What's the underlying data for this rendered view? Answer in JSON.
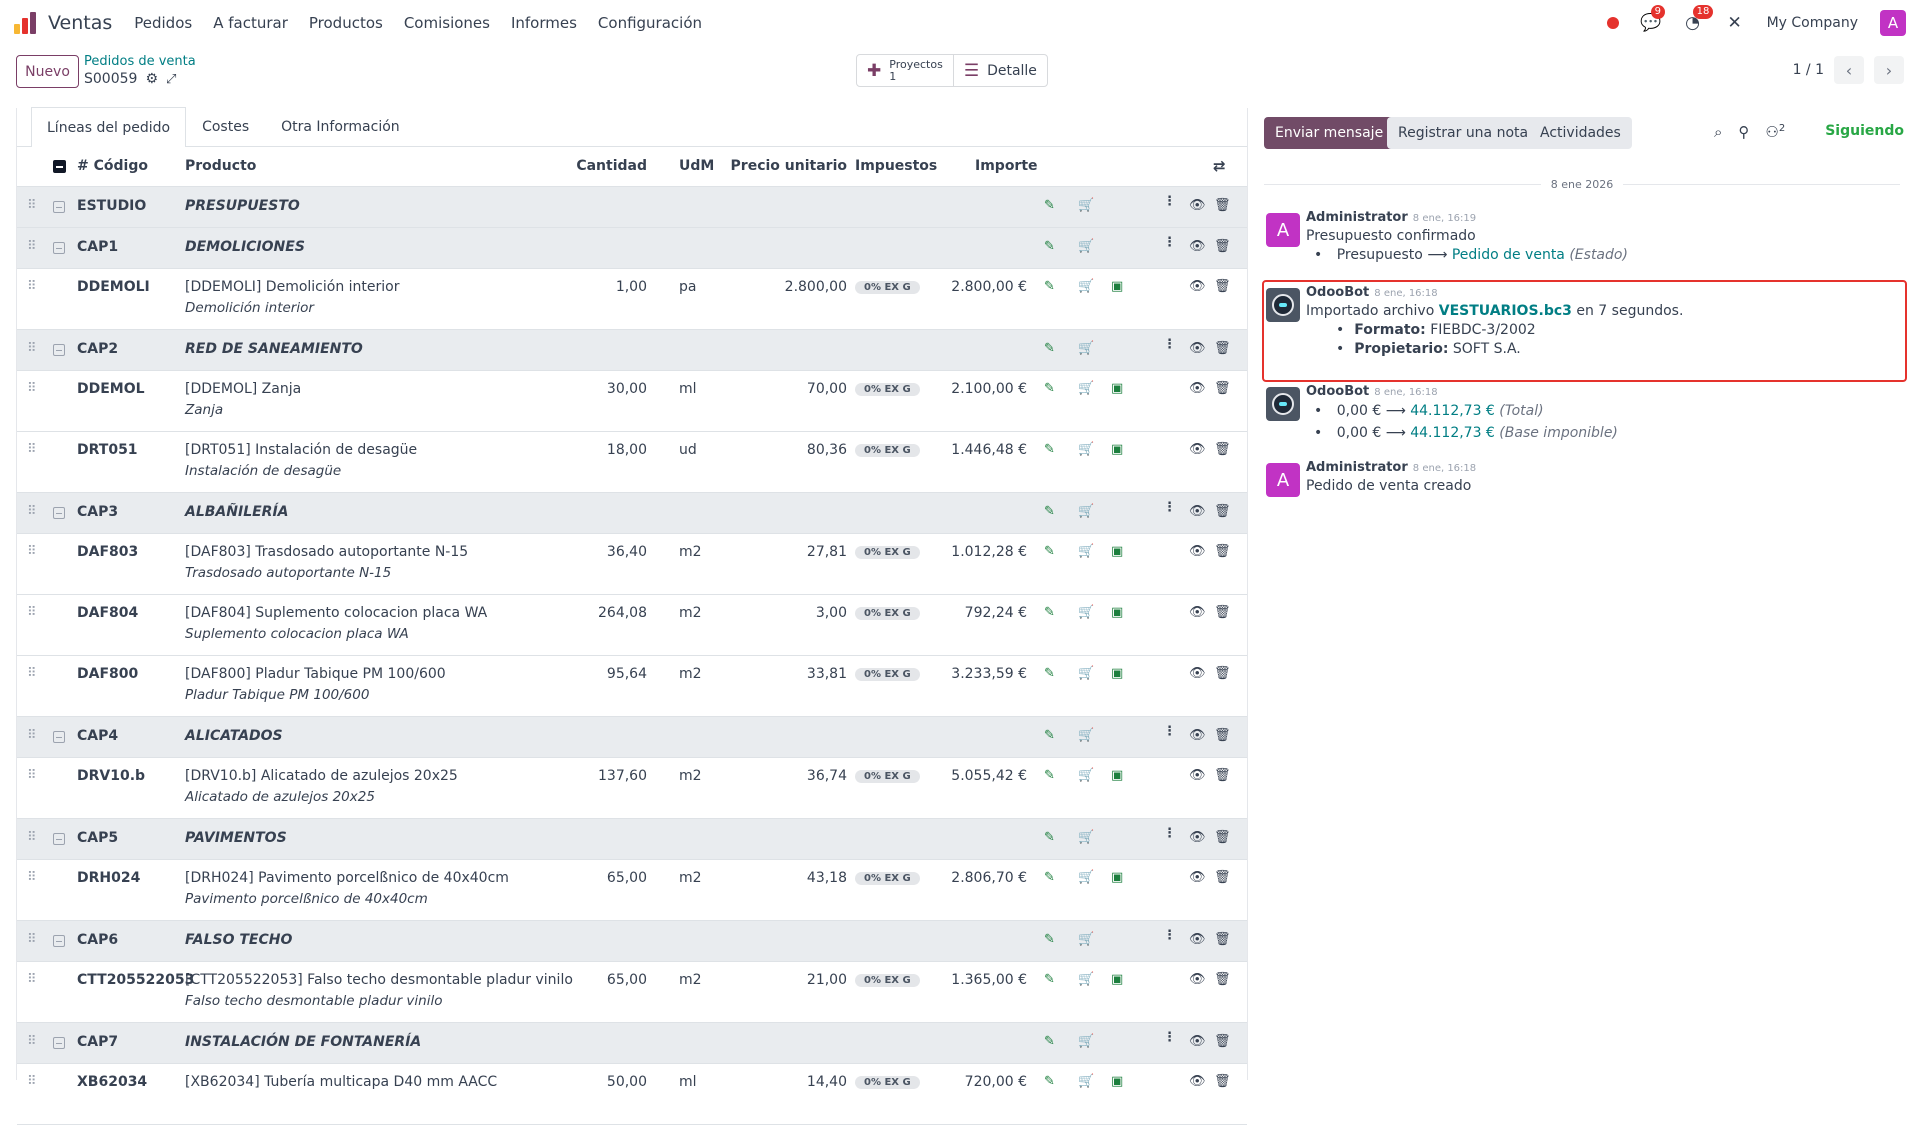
{
  "nav": {
    "app_name": "Ventas",
    "menu": [
      "Pedidos",
      "A facturar",
      "Productos",
      "Comisiones",
      "Informes",
      "Configuración"
    ],
    "messages_count": "9",
    "activities_count": "18",
    "company": "My Company",
    "user_initial": "A"
  },
  "control": {
    "new_label": "Nuevo",
    "breadcrumb": "Pedidos de venta",
    "record": "S00059",
    "smart_projects_label": "Proyectos",
    "smart_projects_count": "1",
    "smart_detail_label": "Detalle",
    "pager": "1 / 1"
  },
  "tabs": [
    "Líneas del pedido",
    "Costes",
    "Otra Información"
  ],
  "columns": {
    "code": "# Código",
    "product": "Producto",
    "qty": "Cantidad",
    "uom": "UdM",
    "price": "Precio unitario",
    "taxes": "Impuestos",
    "amount": "Importe"
  },
  "rows": [
    {
      "type": "section",
      "code": "ESTUDIO",
      "title": "PRESUPUESTO"
    },
    {
      "type": "section",
      "code": "CAP1",
      "title": "DEMOLICIONES"
    },
    {
      "type": "line",
      "code": "DDEMOLI",
      "product": "[DDEMOLI] Demolición interior",
      "desc": "Demolición interior",
      "qty": "1,00",
      "uom": "pa",
      "price": "2.800,00",
      "tax": "0% EX G",
      "amount": "2.800,00 €"
    },
    {
      "type": "section",
      "code": "CAP2",
      "title": "RED DE SANEAMIENTO"
    },
    {
      "type": "line",
      "code": "DDEMOL",
      "product": "[DDEMOL] Zanja",
      "desc": "Zanja",
      "qty": "30,00",
      "uom": "ml",
      "price": "70,00",
      "tax": "0% EX G",
      "amount": "2.100,00 €"
    },
    {
      "type": "line",
      "code": "DRT051",
      "product": "[DRT051] Instalación de desagüe",
      "desc": "Instalación de desagüe",
      "qty": "18,00",
      "uom": "ud",
      "price": "80,36",
      "tax": "0% EX G",
      "amount": "1.446,48 €"
    },
    {
      "type": "section",
      "code": "CAP3",
      "title": "ALBAÑILERÍA"
    },
    {
      "type": "line",
      "code": "DAF803",
      "product": "[DAF803] Trasdosado autoportante N-15",
      "desc": "Trasdosado autoportante N-15",
      "qty": "36,40",
      "uom": "m2",
      "price": "27,81",
      "tax": "0% EX G",
      "amount": "1.012,28 €"
    },
    {
      "type": "line",
      "code": "DAF804",
      "product": "[DAF804] Suplemento colocacion placa WA",
      "desc": "Suplemento colocacion placa WA",
      "qty": "264,08",
      "uom": "m2",
      "price": "3,00",
      "tax": "0% EX G",
      "amount": "792,24 €"
    },
    {
      "type": "line",
      "code": "DAF800",
      "product": "[DAF800] Pladur Tabique PM 100/600",
      "desc": "Pladur Tabique PM 100/600",
      "qty": "95,64",
      "uom": "m2",
      "price": "33,81",
      "tax": "0% EX G",
      "amount": "3.233,59 €"
    },
    {
      "type": "section",
      "code": "CAP4",
      "title": "ALICATADOS"
    },
    {
      "type": "line",
      "code": "DRV10.b",
      "product": "[DRV10.b] Alicatado de azulejos 20x25",
      "desc": "Alicatado de azulejos  20x25",
      "qty": "137,60",
      "uom": "m2",
      "price": "36,74",
      "tax": "0% EX G",
      "amount": "5.055,42 €"
    },
    {
      "type": "section",
      "code": "CAP5",
      "title": "PAVIMENTOS"
    },
    {
      "type": "line",
      "code": "DRH024",
      "product": "[DRH024] Pavimento porcelßnico de 40x40cm",
      "desc": "Pavimento porcelßnico de 40x40cm",
      "qty": "65,00",
      "uom": "m2",
      "price": "43,18",
      "tax": "0% EX G",
      "amount": "2.806,70 €"
    },
    {
      "type": "section",
      "code": "CAP6",
      "title": "FALSO TECHO"
    },
    {
      "type": "line",
      "code": "CTT205522053",
      "product": "[CTT205522053] Falso techo desmontable pladur vinilo",
      "desc": "Falso techo desmontable pladur vinilo",
      "qty": "65,00",
      "uom": "m2",
      "price": "21,00",
      "tax": "0% EX G",
      "amount": "1.365,00 €"
    },
    {
      "type": "section",
      "code": "CAP7",
      "title": "INSTALACIÓN DE FONTANERÍA"
    },
    {
      "type": "line",
      "code": "XB62034",
      "product": "[XB62034] Tubería multicapa D40 mm AACC",
      "desc": "",
      "qty": "50,00",
      "uom": "ml",
      "price": "14,40",
      "tax": "0% EX G",
      "amount": "720,00 €"
    }
  ],
  "chatter": {
    "send_label": "Enviar mensaje",
    "note_label": "Registrar una nota",
    "activities_label": "Actividades",
    "followers_count": "2",
    "following_label": "Siguiendo",
    "date_separator": "8 ene 2026",
    "messages": [
      {
        "author": "Administrator",
        "date": "8 ene, 16:19",
        "text": "Presupuesto confirmado",
        "from": "Presupuesto",
        "to": "Pedido de venta",
        "field": "(Estado)"
      },
      {
        "author": "OdooBot",
        "date": "8 ene, 16:18",
        "text_pre": "Importado archivo",
        "file": "VESTUARIOS.bc3",
        "text_post": "en 7 segundos.",
        "k1": "Formato:",
        "v1": "FIEBDC-3/2002",
        "k2": "Propietario:",
        "v2": "SOFT S.A."
      },
      {
        "author": "OdooBot",
        "date": "8 ene, 16:18",
        "c1_from": "0,00 €",
        "c1_to": "44.112,73 €",
        "c1_field": "(Total)",
        "c2_from": "0,00 €",
        "c2_to": "44.112,73 €",
        "c2_field": "(Base imponible)"
      },
      {
        "author": "Administrator",
        "date": "8 ene, 16:18",
        "text": "Pedido de venta creado"
      }
    ]
  }
}
